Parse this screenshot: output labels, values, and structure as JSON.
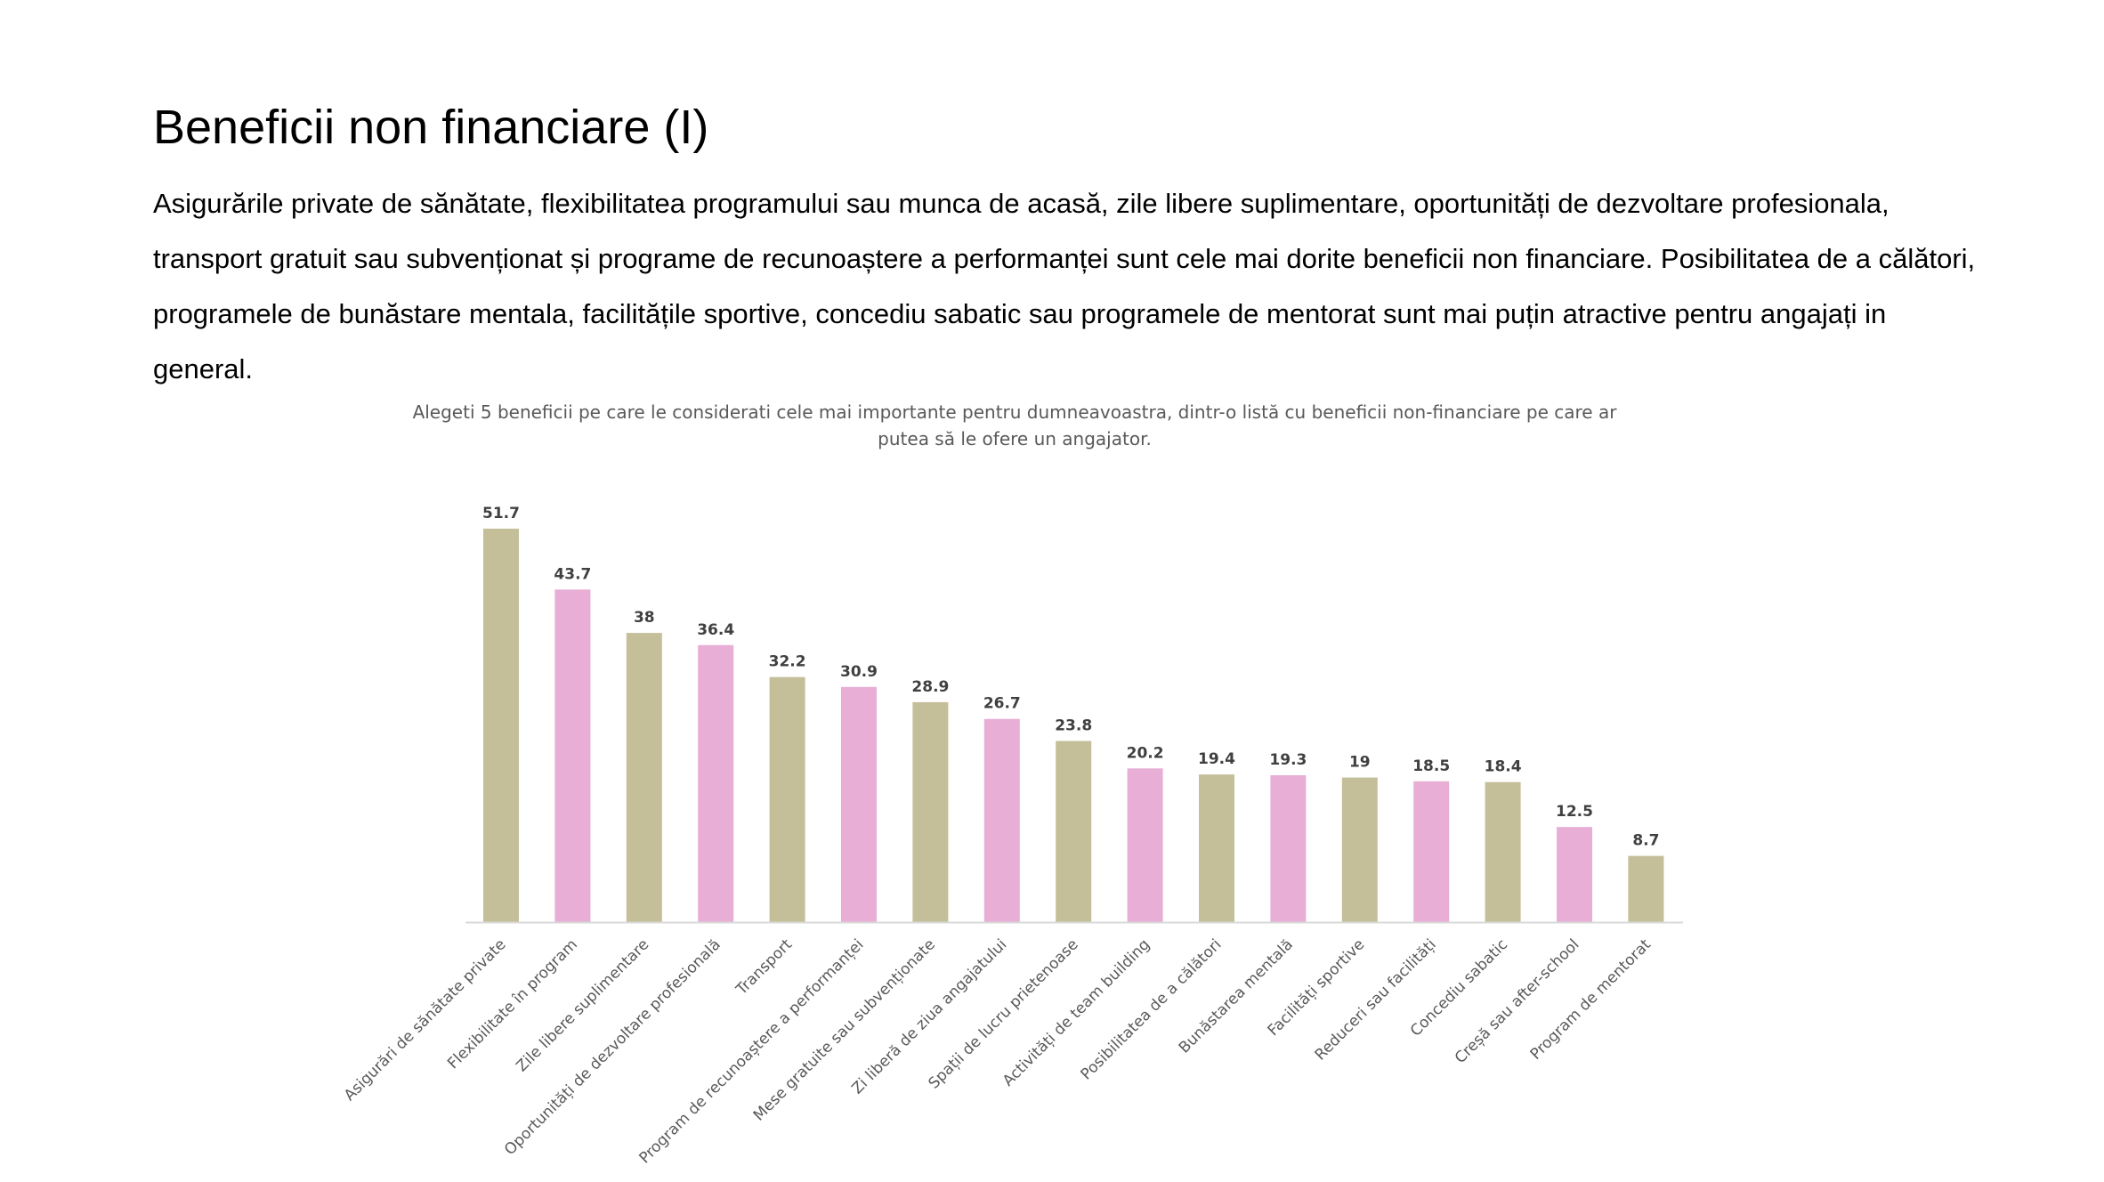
{
  "slide": {
    "title": "Beneficii non financiare (I)",
    "intro": "Asigurările private de sănătate, flexibilitatea programului sau munca de acasă, zile libere suplimentare, oportunități de dezvoltare profesionala, transport gratuit sau subvenționat și programe de recunoaștere a performanței sunt cele mai dorite beneficii non financiare. Posibilitatea de a călători, programele de bunăstare mentala, facilitățile sportive, concediu sabatic sau programele de mentorat sunt mai puțin atractive pentru angajați in general."
  },
  "colors": {
    "olive": "#c4be99",
    "pink": "#e8aed5",
    "axis": "#d9d9d9"
  },
  "chart_data": {
    "type": "bar",
    "title": "Alegeti 5 beneficii pe care le considerati cele mai importante pentru dumneavoastra, dintr-o listă cu beneficii non-financiare pe care ar putea să le ofere un angajator.",
    "categories": [
      "Asigurări de sănătate private",
      "Flexibilitate în program",
      "Zile libere suplimentare",
      "Oportunități de dezvoltare profesională",
      "Transport",
      "Program de recunoaștere a performanței",
      "Mese gratuite sau subvenționate",
      "Zi liberă de ziua angajatului",
      "Spații de lucru prietenoase",
      "Activități de team building",
      "Posibilitatea de a călători",
      "Bunăstarea mentală",
      "Facilități sportive",
      "Reduceri sau facilități",
      "Concediu sabatic",
      "Creșă sau after-school",
      "Program de mentorat"
    ],
    "values": [
      51.7,
      43.7,
      38,
      36.4,
      32.2,
      30.9,
      28.9,
      26.7,
      23.8,
      20.2,
      19.4,
      19.3,
      19,
      18.5,
      18.4,
      12.5,
      8.7
    ],
    "value_labels": [
      "51.7",
      "43.7",
      "38",
      "36.4",
      "32.2",
      "30.9",
      "28.9",
      "26.7",
      "23.8",
      "20.2",
      "19.4",
      "19.3",
      "19",
      "18.5",
      "18.4",
      "12.5",
      "8.7"
    ],
    "bar_colors": [
      "#c4be99",
      "#e8aed5",
      "#c4be99",
      "#e8aed5",
      "#c4be99",
      "#e8aed5",
      "#c4be99",
      "#e8aed5",
      "#c4be99",
      "#e8aed5",
      "#c4be99",
      "#e8aed5",
      "#c4be99",
      "#e8aed5",
      "#c4be99",
      "#e8aed5",
      "#c4be99"
    ],
    "ylim": [
      0,
      55
    ],
    "grid": false,
    "legend": "none"
  }
}
